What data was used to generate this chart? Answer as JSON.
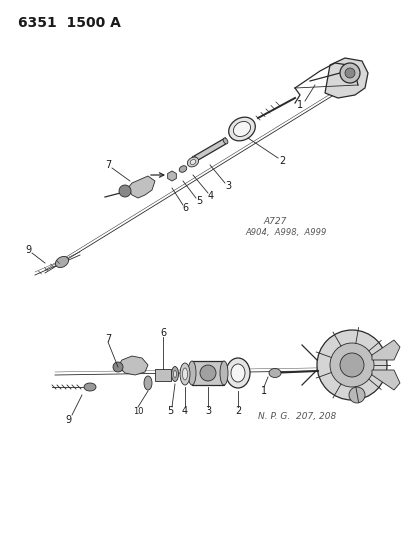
{
  "title": "6351  1500 A",
  "bg_color": "#ffffff",
  "line_color": "#2a2a2a",
  "text_color": "#1a1a1a",
  "note_color": "#555555",
  "title_fontsize": 10,
  "label_fontsize": 7,
  "note_fontsize": 6,
  "note1": "A727",
  "note2": "A904,  A998,  A999",
  "note3": "N. P. G.  207, 208"
}
